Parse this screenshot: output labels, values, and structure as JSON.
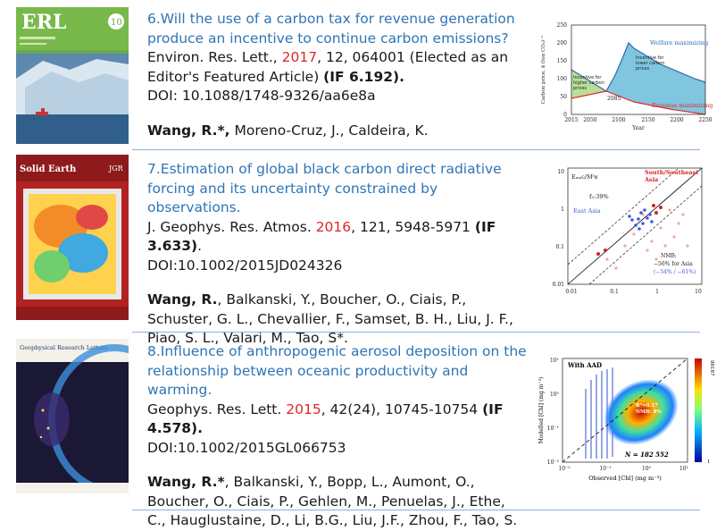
{
  "publications": [
    {
      "title": "6.Will the use of a carbon tax for revenue generation produce an incentive to continue carbon emissions?",
      "journal": "Environ. Res. Lett., ",
      "year": "2017",
      "volume": ", 12, 064001 (Elected as an Editor's Featured Article) ",
      "impact": "(IF 6.192).",
      "doi": "DOI: 10.1088/1748-9326/aa6e8a",
      "lead_author": "Wang, R.*,",
      "other_authors": " Moreno-Cruz, J., Caldeira, K.",
      "cover": {
        "name": "ERL",
        "badge": "10"
      },
      "figure": {
        "ylabel": "Carbon price, $ (ton CO₂)⁻¹",
        "xlabel": "Year",
        "yticks": [
          "0",
          "50",
          "100",
          "150",
          "200",
          "250"
        ],
        "xticks": [
          "2015",
          "2050",
          "2100",
          "2150",
          "2200",
          "2250"
        ],
        "welfare_label": "Welfare maximizing",
        "revenue_label": "Revenue maximizing",
        "higher_label": "Incentive for higher carbon prices",
        "lower_label": "Incentive for lower carbon prices",
        "crossover_year": "2085"
      }
    },
    {
      "title": "7.Estimation of global black carbon direct radiative forcing and its uncertainty constrained by observations.",
      "journal": " J. Geophys. Res. Atmos. ",
      "year": "2016",
      "volume": ", 121, 5948-5971 ",
      "impact": "(IF 3.633)",
      "impact_tail": ".",
      "doi": "DOI:10.1002/2015JD024326",
      "lead_author": "Wang, R.",
      "other_authors": ", Balkanski, Y., Boucher, O., Ciais, P., Schuster, G. L., Chevallier, F., Samset, B. H., Liu, J. F., Piao, S. L., Valari, M., Tao, S*.",
      "cover": {
        "header": "Solid Earth",
        "badge": "JGR"
      },
      "figure": {
        "corner_label": "Eₘₐᴄ/Mᴵɴ",
        "f_label": "f₂:39%",
        "south_label": "South/Southeast Asia",
        "east_label": "East Asia",
        "nmb_label": "NMB:",
        "nmb_value": "−56% for Asia",
        "nmb_range": "(−54% / −61%)",
        "yticks": [
          "0.01",
          "0.1",
          "1",
          "10"
        ],
        "xticks": [
          "0.01",
          "0.1",
          "1",
          "10"
        ]
      }
    },
    {
      "title": "8.Influence of anthropogenic aerosol deposition on the relationship between oceanic productivity and warming.",
      "journal": " Geophys. Res. Lett. ",
      "year": "2015",
      "volume": ", 42(24), 10745-10754 ",
      "impact": "(IF 4.578).",
      "doi": " DOI:10.1002/2015GL066753",
      "lead_author": "Wang, R.*",
      "other_authors": ", Balkanski, Y., Bopp, L., Aumont, O., Boucher, O., Ciais, P., Gehlen, M., Penuelas, J., Ethe, C., Hauglustaine, D., Li, B.G., Liu, J.F., Zhou, F., Tao, S.",
      "cover": {
        "header": "Geophysical Research Letters"
      },
      "figure": {
        "panel_label": "With AAD",
        "n_label": "N = 182 552",
        "stats": "R²=0.17 NMB: 8%",
        "ylabel": "Modelled [Chl] (mg m⁻³)",
        "xlabel": "Observed [Chl] (mg m⁻³)",
        "xticks": [
          "10⁻²",
          "10⁻¹",
          "10⁰",
          "10¹"
        ],
        "yticks": [
          "10¹",
          "10⁰",
          "10⁻¹",
          "10⁻²"
        ],
        "colorbar_max": "98187",
        "colorbar_min": "1"
      }
    }
  ],
  "colors": {
    "title": "#2e75b6",
    "year": "#e0262a",
    "rule": "#8fb0d9"
  }
}
